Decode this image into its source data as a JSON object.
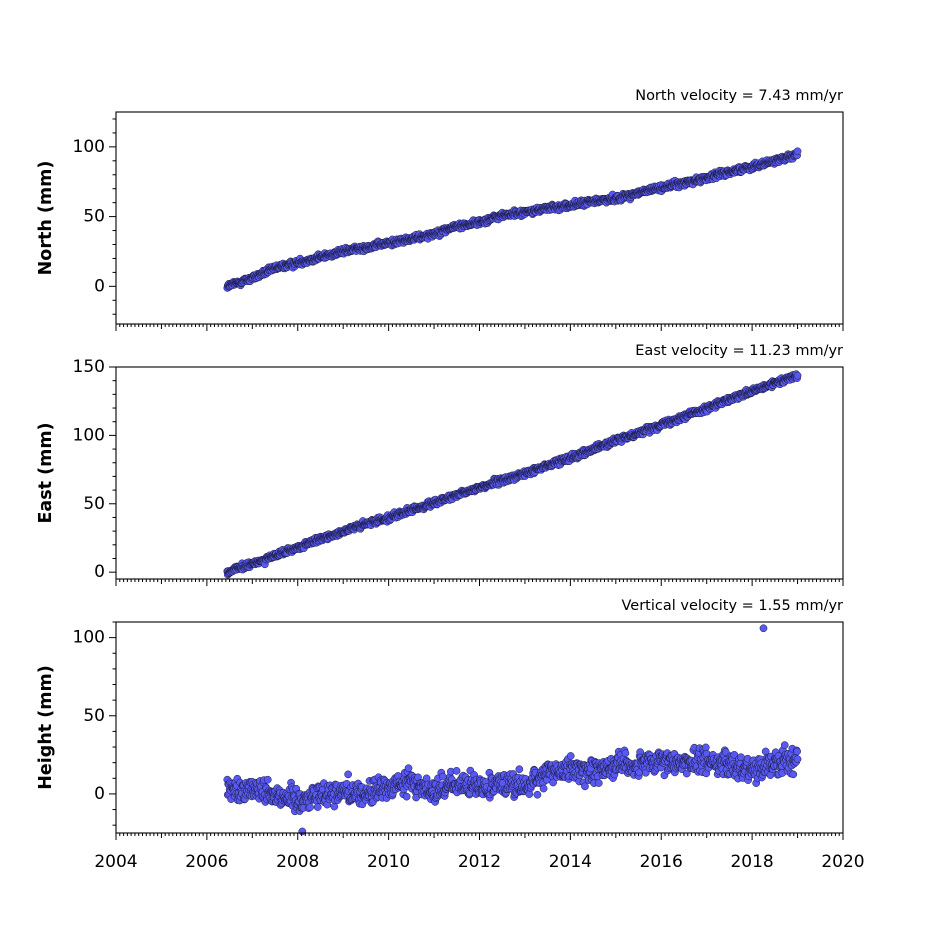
{
  "chart_data": [
    {
      "type": "scatter",
      "title": "North velocity = 7.43 mm/yr",
      "ylabel": "North (mm)",
      "xlim": [
        2004,
        2020
      ],
      "ylim": [
        -27,
        125
      ],
      "yticks": [
        0,
        50,
        100
      ],
      "color": "#5858f2",
      "series": [
        {
          "x": [
            2006.45,
            2007.0,
            2007.5,
            2008.0,
            2008.5,
            2009.0,
            2009.5,
            2010.0,
            2010.5,
            2011.0,
            2011.5,
            2012.0,
            2012.5,
            2013.0,
            2013.5,
            2014.0,
            2014.5,
            2015.0,
            2015.5,
            2016.0,
            2016.5,
            2017.0,
            2017.5,
            2018.0,
            2018.5,
            2019.0
          ],
          "y": [
            0,
            6,
            13,
            17,
            21,
            25,
            28,
            31,
            34,
            38,
            43,
            46,
            51,
            53,
            56,
            58,
            61,
            63,
            67,
            71,
            74,
            78,
            82,
            86,
            90,
            95
          ],
          "noise": 1.8
        }
      ]
    },
    {
      "type": "scatter",
      "title": "East velocity = 11.23 mm/yr",
      "ylabel": "East (mm)",
      "xlim": [
        2004,
        2020
      ],
      "ylim": [
        -5,
        150
      ],
      "yticks": [
        0,
        50,
        100,
        150
      ],
      "color": "#5858f2",
      "series": [
        {
          "x": [
            2006.45,
            2007.0,
            2007.5,
            2008.0,
            2008.5,
            2009.0,
            2009.5,
            2010.0,
            2010.5,
            2011.0,
            2011.5,
            2012.0,
            2012.5,
            2013.0,
            2013.5,
            2014.0,
            2014.5,
            2015.0,
            2015.5,
            2016.0,
            2016.5,
            2017.0,
            2017.5,
            2018.0,
            2018.5,
            2019.0
          ],
          "y": [
            0,
            6,
            12,
            18,
            24,
            30,
            35,
            40,
            45,
            51,
            56,
            62,
            67,
            72,
            78,
            84,
            90,
            96,
            102,
            108,
            114,
            120,
            126,
            132,
            138,
            144
          ],
          "noise": 1.8
        }
      ]
    },
    {
      "type": "scatter",
      "title": "Vertical velocity = 1.55 mm/yr",
      "ylabel": "Height (mm)",
      "xlim": [
        2004,
        2020
      ],
      "ylim": [
        -25,
        110
      ],
      "yticks": [
        0,
        50,
        100
      ],
      "color": "#5858f2",
      "xticks": [
        "2004",
        "2006",
        "2008",
        "2010",
        "2012",
        "2014",
        "2016",
        "2018",
        "2020"
      ],
      "series": [
        {
          "x": [
            2006.45,
            2007.0,
            2007.5,
            2008.0,
            2008.5,
            2009.0,
            2009.5,
            2010.0,
            2010.5,
            2011.0,
            2011.5,
            2012.0,
            2012.5,
            2013.0,
            2013.5,
            2014.0,
            2014.5,
            2015.0,
            2015.5,
            2016.0,
            2016.5,
            2017.0,
            2017.5,
            2018.0,
            2018.5,
            2019.0
          ],
          "y": [
            2,
            4,
            0,
            -4,
            0,
            2,
            0,
            4,
            8,
            2,
            6,
            4,
            8,
            4,
            14,
            16,
            14,
            20,
            18,
            20,
            20,
            22,
            18,
            16,
            20,
            22
          ],
          "noise": 6.5
        },
        {
          "x": [
            2018.25
          ],
          "y": [
            106
          ],
          "noise": 0
        },
        {
          "x": [
            2008.1
          ],
          "y": [
            -24
          ],
          "noise": 0
        }
      ]
    }
  ]
}
